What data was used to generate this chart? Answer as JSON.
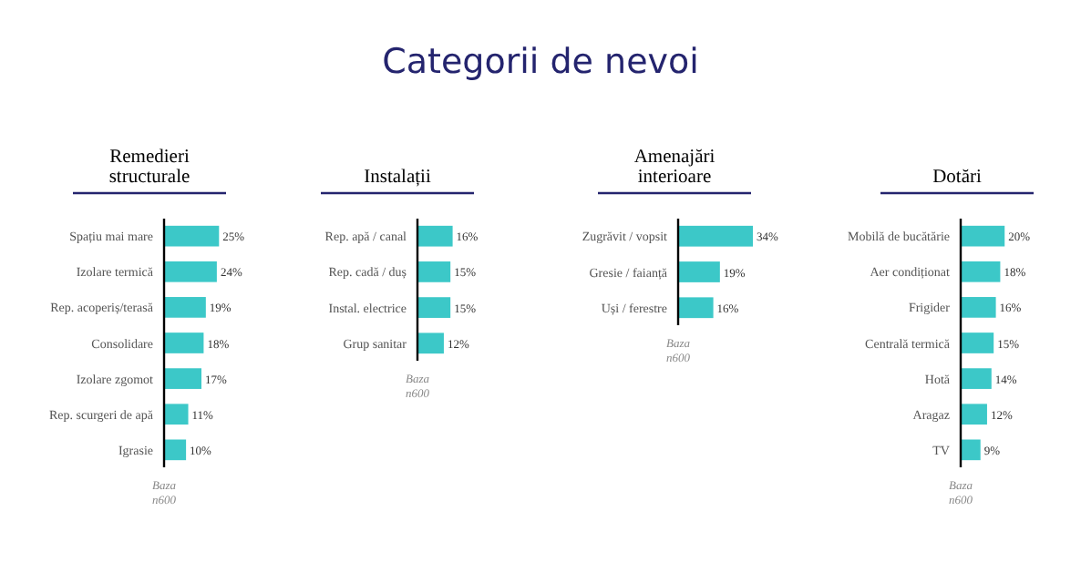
{
  "chart_data": [
    {
      "type": "other",
      "title": "Categorii de nevoi"
    },
    {
      "type": "bar",
      "orientation": "horizontal",
      "title": "Remedieri structurale",
      "categories": [
        "Spațiu mai mare",
        "Izolare termică",
        "Rep. acoperiș/terasă",
        "Consolidare",
        "Izolare zgomot",
        "Rep. scurgeri de apă",
        "Igrasie"
      ],
      "values": [
        25,
        24,
        19,
        18,
        17,
        11,
        10
      ],
      "value_labels": [
        "25%",
        "24%",
        "19%",
        "18%",
        "17%",
        "11%",
        "10%"
      ],
      "color": "#3cc8c8",
      "annotations": [
        "Baza n600"
      ]
    },
    {
      "type": "bar",
      "orientation": "horizontal",
      "title": "Instalații",
      "categories": [
        "Rep. apă / canal",
        "Rep. cadă / duș",
        "Instal. electrice",
        "Grup sanitar"
      ],
      "values": [
        16,
        15,
        15,
        12
      ],
      "value_labels": [
        "16%",
        "15%",
        "15%",
        "12%"
      ],
      "color": "#3cc8c8",
      "annotations": [
        "Baza n600"
      ]
    },
    {
      "type": "bar",
      "orientation": "horizontal",
      "title": "Amenajări interioare",
      "categories": [
        "Zugrăvit / vopsit",
        "Gresie / faianță",
        "Uși / ferestre"
      ],
      "values": [
        34,
        19,
        16
      ],
      "value_labels": [
        "34%",
        "19%",
        "16%"
      ],
      "color": "#3cc8c8",
      "annotations": [
        "Baza n600"
      ]
    },
    {
      "type": "bar",
      "orientation": "horizontal",
      "title": "Dotări",
      "categories": [
        "Mobilă de bucătărie",
        "Aer condiționat",
        "Frigider",
        "Centrală termică",
        "Hotă",
        "Aragaz",
        "TV"
      ],
      "values": [
        20,
        18,
        16,
        15,
        14,
        12,
        9
      ],
      "value_labels": [
        "20%",
        "18%",
        "16%",
        "15%",
        "14%",
        "12%",
        "9%"
      ],
      "color": "#3cc8c8",
      "annotations": [
        "Baza n600"
      ]
    }
  ]
}
